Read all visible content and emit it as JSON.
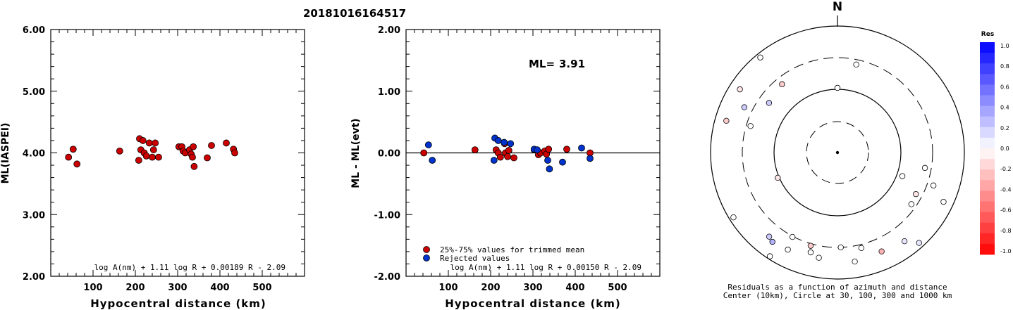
{
  "figure": {
    "title": "20181016164517",
    "left_panel": {
      "ylabel": "ML(IASPEI)",
      "xlabel": "Hypocentral distance (km)",
      "formula": "log A(nm) + 1.11 log R + 0.00189 R - 2.09"
    },
    "middle_panel": {
      "ylabel": "ML - ML(evt)",
      "xlabel": "Hypocentral distance (km)",
      "ml_label": "ML=",
      "ml_value": "3.91",
      "legend_trimmed": "25%-75% values for trimmed mean",
      "legend_rejected": "Rejected values",
      "formula": "log A(nm) + 1.11 log R + 0.00150 R - 2.09"
    },
    "polar_panel": {
      "north_label": "N",
      "caption_line1": "Residuals as a function of azimuth and distance",
      "caption_line2": "Center (10km), Circle at 30, 100, 300 and 1000 km",
      "colorbar_title": "Res",
      "colorbar_ticks": [
        "1.0",
        "0.8",
        "0.6",
        "0.4",
        "0.2",
        "0.0",
        "-0.2",
        "-0.4",
        "-0.6",
        "-0.8",
        "-1.0"
      ]
    },
    "colors": {
      "trimmed": "#cc0000",
      "rejected": "#0033cc",
      "positive": "#0000ff",
      "negative": "#ff0000"
    }
  },
  "chart_data": [
    {
      "type": "scatter",
      "panel": "left",
      "xlabel": "Hypocentral distance (km)",
      "ylabel": "ML(IASPEI)",
      "xlim": [
        0,
        600
      ],
      "ylim": [
        2.0,
        6.0
      ],
      "xticks": [
        "100",
        "200",
        "300",
        "400",
        "500"
      ],
      "yticks": [
        "2.00",
        "3.00",
        "4.00",
        "5.00",
        "6.00"
      ],
      "points": [
        [
          42,
          3.93
        ],
        [
          53,
          4.06
        ],
        [
          62,
          3.82
        ],
        [
          163,
          4.03
        ],
        [
          208,
          3.88
        ],
        [
          210,
          4.23
        ],
        [
          213,
          4.05
        ],
        [
          218,
          4.2
        ],
        [
          221,
          4.0
        ],
        [
          226,
          3.95
        ],
        [
          233,
          4.16
        ],
        [
          240,
          3.93
        ],
        [
          243,
          4.05
        ],
        [
          247,
          4.16
        ],
        [
          255,
          3.93
        ],
        [
          303,
          4.1
        ],
        [
          310,
          4.1
        ],
        [
          313,
          4.03
        ],
        [
          318,
          4.0
        ],
        [
          328,
          4.05
        ],
        [
          332,
          3.98
        ],
        [
          335,
          3.93
        ],
        [
          337,
          4.1
        ],
        [
          339,
          3.78
        ],
        [
          370,
          3.92
        ],
        [
          380,
          4.12
        ],
        [
          415,
          4.16
        ],
        [
          432,
          4.06
        ],
        [
          435,
          4.0
        ]
      ]
    },
    {
      "type": "scatter",
      "panel": "middle",
      "xlabel": "Hypocentral distance (km)",
      "ylabel": "ML - ML(evt)",
      "xlim": [
        0,
        600
      ],
      "ylim": [
        -2.0,
        2.0
      ],
      "xticks": [
        "100",
        "200",
        "300",
        "400",
        "500"
      ],
      "yticks": [
        "-2.00",
        "-1.00",
        "0.00",
        "1.00",
        "2.00"
      ],
      "series": [
        {
          "name": "25%-75% values for trimmed mean",
          "points": [
            [
              42,
              0.0
            ],
            [
              163,
              0.05
            ],
            [
              213,
              0.05
            ],
            [
              218,
              0.0
            ],
            [
              223,
              -0.07
            ],
            [
              233,
              0.15
            ],
            [
              235,
              0.0
            ],
            [
              240,
              -0.06
            ],
            [
              243,
              0.04
            ],
            [
              255,
              -0.08
            ],
            [
              303,
              0.05
            ],
            [
              313,
              -0.03
            ],
            [
              318,
              0.0
            ],
            [
              328,
              0.03
            ],
            [
              332,
              -0.02
            ],
            [
              337,
              0.06
            ],
            [
              380,
              0.06
            ],
            [
              435,
              0.0
            ]
          ]
        },
        {
          "name": "Rejected values",
          "points": [
            [
              53,
              0.13
            ],
            [
              62,
              -0.12
            ],
            [
              208,
              -0.12
            ],
            [
              210,
              0.24
            ],
            [
              218,
              0.2
            ],
            [
              232,
              0.17
            ],
            [
              247,
              0.15
            ],
            [
              303,
              0.06
            ],
            [
              310,
              0.05
            ],
            [
              335,
              -0.12
            ],
            [
              339,
              -0.26
            ],
            [
              370,
              -0.15
            ],
            [
              415,
              0.08
            ],
            [
              435,
              -0.09
            ]
          ]
        }
      ]
    },
    {
      "type": "polar_scatter",
      "panel": "right",
      "rings_km": [
        30,
        100,
        300,
        1000
      ],
      "center_km": 10,
      "points": [
        [
          0,
          92,
          0.0
        ],
        [
          12,
          128,
          0.0
        ],
        [
          296,
          147,
          0.2
        ],
        [
          306,
          120,
          0.2
        ],
        [
          303,
          165,
          -0.1
        ],
        [
          321,
          125,
          -0.2
        ],
        [
          321,
          174,
          0.0
        ],
        [
          287,
          129,
          0.0
        ],
        [
          286,
          164,
          -0.2
        ],
        [
          247,
          92,
          -0.1
        ],
        [
          238,
          174,
          0.0
        ],
        [
          219,
          154,
          0.2
        ],
        [
          216,
          157,
          0.3
        ],
        [
          213,
          176,
          0.0
        ],
        [
          207,
          155,
          0.0
        ],
        [
          208,
          136,
          0.0
        ],
        [
          196,
          138,
          -0.2
        ],
        [
          195,
          147,
          0.0
        ],
        [
          190,
          152,
          0.0
        ],
        [
          178,
          135,
          0.0
        ],
        [
          171,
          157,
          0.0
        ],
        [
          166,
          140,
          0.0
        ],
        [
          156,
          154,
          -0.3
        ],
        [
          143,
          158,
          0.1
        ],
        [
          138,
          173,
          0.1
        ],
        [
          125,
          128,
          0.0
        ],
        [
          118,
          126,
          -0.1
        ],
        [
          115,
          166,
          0.0
        ],
        [
          109,
          144,
          0.0
        ],
        [
          100,
          126,
          0.0
        ],
        [
          110,
          98,
          0.0
        ]
      ],
      "point_format": "[azimuth_deg, plot_radius_px, residual]"
    }
  ]
}
